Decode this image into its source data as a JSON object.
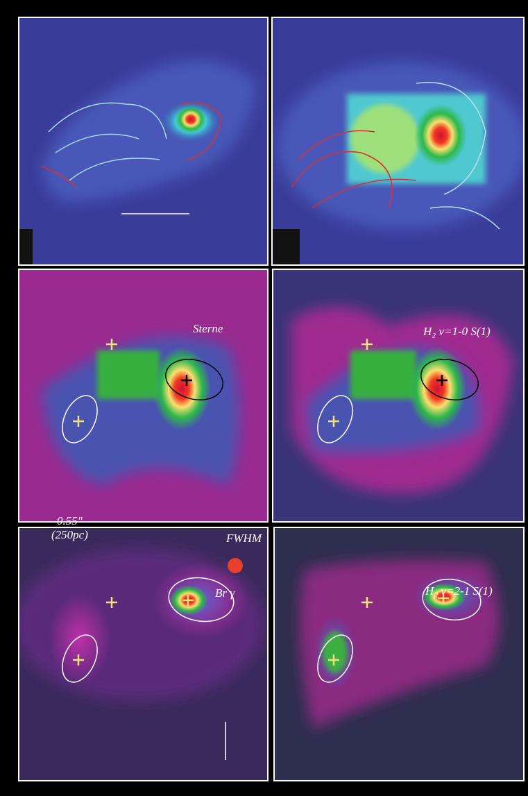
{
  "panels": {
    "middle_left": {
      "label": "Sterne"
    },
    "middle_right": {
      "label": "H₂ v=1-0 S(1)"
    },
    "bottom_left": {
      "scale_label": "0.55\"",
      "scale_sub": "(250pc)",
      "beam_label": "FWHM",
      "label": "Br γ"
    },
    "bottom_right": {
      "label": "H₂ v=2-1 S(1)"
    }
  }
}
